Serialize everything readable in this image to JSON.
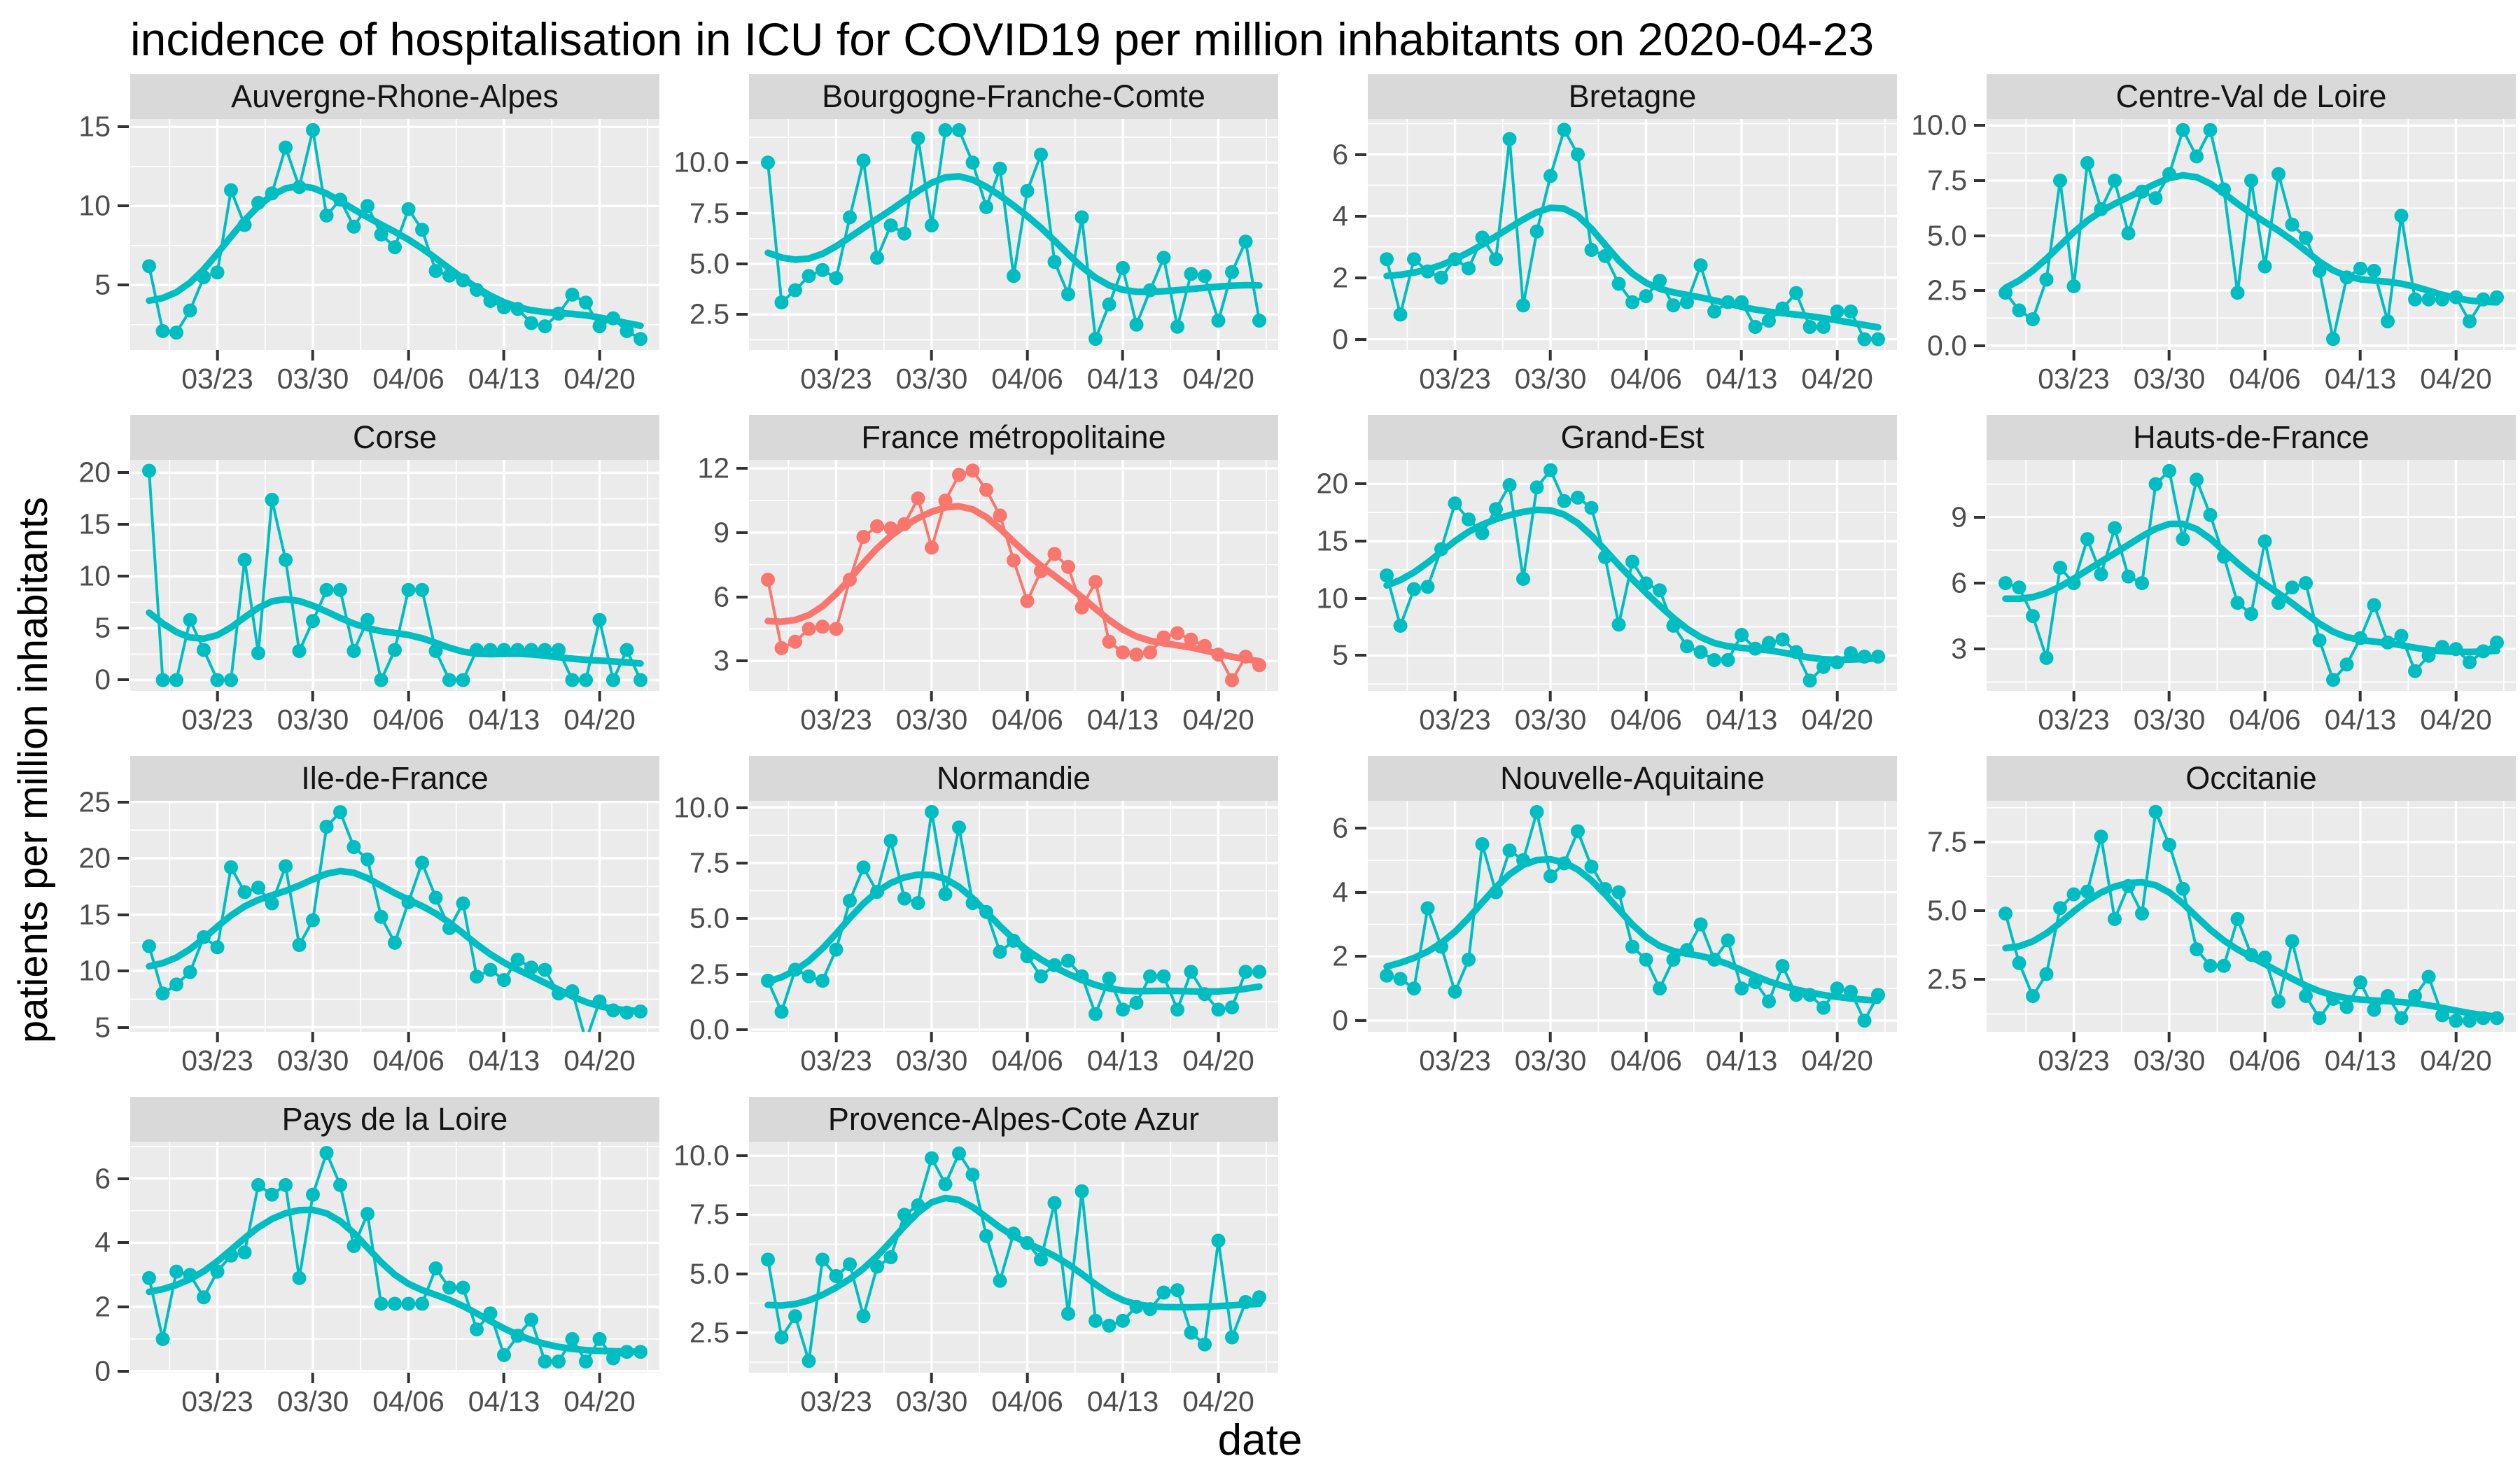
{
  "page": {
    "title": "incidence of hospitalisation in ICU for COVID19 per million inhabitants on 2020-04-23",
    "x_axis_label": "date",
    "y_axis_label": "patients per million inhabitants"
  },
  "style": {
    "series_color": "#00BDC2",
    "highlight_color": "#F8766D",
    "strip_bg": "#D9D9D9",
    "panel_bg": "#EBEBEB",
    "grid_color": "#FFFFFF",
    "tick_label_color": "#4D4D4D",
    "tick_mark_color": "#333333"
  },
  "chart_data": {
    "type": "line",
    "faceted": true,
    "legend": "none",
    "grid": "on",
    "x": [
      "03/18",
      "03/19",
      "03/20",
      "03/21",
      "03/22",
      "03/23",
      "03/24",
      "03/25",
      "03/26",
      "03/27",
      "03/28",
      "03/29",
      "03/30",
      "03/31",
      "04/01",
      "04/02",
      "04/03",
      "04/04",
      "04/05",
      "04/06",
      "04/07",
      "04/08",
      "04/09",
      "04/10",
      "04/11",
      "04/12",
      "04/13",
      "04/14",
      "04/15",
      "04/16",
      "04/17",
      "04/18",
      "04/19",
      "04/20",
      "04/21",
      "04/22",
      "04/23"
    ],
    "x_tick_labels": [
      "03/23",
      "03/30",
      "04/06",
      "04/13",
      "04/20"
    ],
    "x_tick_indices": [
      5,
      12,
      19,
      26,
      33
    ],
    "panels": [
      {
        "title": "Auvergne-Rhone-Alpes",
        "highlight": false,
        "y_ticks": [
          5,
          10,
          15
        ],
        "y_tick_labels": [
          "5",
          "10",
          "15"
        ],
        "ylim": [
          0.9,
          15.5
        ],
        "values": [
          6.2,
          2.1,
          2.0,
          3.4,
          5.5,
          5.8,
          11.0,
          8.8,
          10.2,
          10.8,
          13.7,
          11.2,
          14.8,
          9.4,
          10.4,
          8.7,
          10.0,
          8.2,
          7.4,
          9.8,
          8.5,
          5.9,
          5.6,
          5.3,
          4.7,
          4.0,
          3.6,
          3.5,
          2.6,
          2.4,
          3.2,
          4.4,
          3.9,
          2.4,
          2.9,
          2.1,
          1.6
        ]
      },
      {
        "title": "Bourgogne-Franche-Comte",
        "highlight": false,
        "y_ticks": [
          2.5,
          5.0,
          7.5,
          10.0
        ],
        "y_tick_labels": [
          "2.5",
          "5.0",
          "7.5",
          "10.0"
        ],
        "ylim": [
          0.75,
          12.15
        ],
        "values": [
          10.0,
          3.1,
          3.7,
          4.4,
          4.7,
          4.3,
          7.3,
          10.1,
          5.3,
          6.9,
          6.5,
          11.2,
          6.9,
          11.6,
          11.6,
          10.0,
          7.8,
          9.7,
          4.4,
          8.6,
          10.4,
          5.1,
          3.5,
          7.3,
          1.3,
          3.0,
          4.8,
          2.0,
          3.7,
          5.3,
          1.9,
          4.5,
          4.4,
          2.2,
          4.6,
          6.1,
          2.2
        ]
      },
      {
        "title": "Bretagne",
        "highlight": false,
        "y_ticks": [
          0,
          2,
          4,
          6
        ],
        "y_tick_labels": [
          "0",
          "2",
          "4",
          "6"
        ],
        "ylim": [
          -0.35,
          7.15
        ],
        "values": [
          2.6,
          0.8,
          2.6,
          2.2,
          2.0,
          2.6,
          2.3,
          3.3,
          2.6,
          6.5,
          1.1,
          3.5,
          5.3,
          6.8,
          6.0,
          2.9,
          2.7,
          1.8,
          1.2,
          1.4,
          1.9,
          1.1,
          1.2,
          2.4,
          0.9,
          1.2,
          1.2,
          0.4,
          0.6,
          1.0,
          1.5,
          0.4,
          0.4,
          0.9,
          0.9,
          0.0,
          0.0
        ]
      },
      {
        "title": "Centre-Val de Loire",
        "highlight": false,
        "y_ticks": [
          0.0,
          2.5,
          5.0,
          7.5,
          10.0
        ],
        "y_tick_labels": [
          "0.0",
          "2.5",
          "5.0",
          "7.5",
          "10.0"
        ],
        "ylim": [
          -0.2,
          10.3
        ],
        "values": [
          2.4,
          1.6,
          1.2,
          3.0,
          7.5,
          2.7,
          8.3,
          6.2,
          7.5,
          5.1,
          7.0,
          6.7,
          7.8,
          9.8,
          8.6,
          9.8,
          7.1,
          2.4,
          7.5,
          3.6,
          7.8,
          5.5,
          4.9,
          3.4,
          0.3,
          3.1,
          3.5,
          3.4,
          1.1,
          5.9,
          2.1,
          2.1,
          2.1,
          2.2,
          1.1,
          2.1,
          2.2
        ]
      },
      {
        "title": "Corse",
        "highlight": false,
        "y_ticks": [
          0,
          5,
          10,
          15,
          20
        ],
        "y_tick_labels": [
          "0",
          "5",
          "10",
          "15",
          "20"
        ],
        "ylim": [
          -1.05,
          21.25
        ],
        "values": [
          20.2,
          0,
          0,
          5.8,
          2.9,
          0,
          0,
          11.6,
          2.6,
          17.4,
          11.6,
          2.8,
          5.7,
          8.7,
          8.7,
          2.8,
          5.8,
          0,
          2.9,
          8.7,
          8.7,
          2.8,
          0,
          0,
          2.9,
          2.9,
          2.9,
          2.9,
          2.9,
          2.9,
          2.9,
          0,
          0,
          5.8,
          0,
          2.9,
          0
        ]
      },
      {
        "title": "France métropolitaine",
        "highlight": true,
        "y_ticks": [
          3,
          6,
          9,
          12
        ],
        "y_tick_labels": [
          "3",
          "6",
          "9",
          "12"
        ],
        "ylim": [
          1.6,
          12.4
        ],
        "values": [
          6.8,
          3.6,
          3.9,
          4.5,
          4.6,
          4.5,
          6.8,
          8.8,
          9.3,
          9.2,
          9.4,
          10.6,
          8.3,
          10.5,
          11.7,
          11.9,
          11.0,
          9.8,
          7.7,
          5.8,
          7.2,
          8.0,
          7.4,
          5.5,
          6.7,
          3.9,
          3.4,
          3.3,
          3.4,
          4.1,
          4.3,
          4.0,
          3.7,
          3.3,
          2.1,
          3.2,
          2.8
        ]
      },
      {
        "title": "Grand-Est",
        "highlight": false,
        "y_ticks": [
          5,
          10,
          15,
          20
        ],
        "y_tick_labels": [
          "5",
          "10",
          "15",
          "20"
        ],
        "ylim": [
          1.9,
          22.1
        ],
        "values": [
          12.0,
          7.6,
          10.8,
          11.0,
          14.3,
          18.3,
          16.9,
          15.7,
          17.8,
          19.9,
          11.7,
          19.7,
          21.2,
          18.5,
          18.8,
          17.9,
          13.6,
          7.7,
          13.2,
          11.3,
          10.7,
          7.6,
          5.8,
          5.3,
          4.6,
          4.6,
          6.8,
          5.6,
          6.1,
          6.4,
          5.3,
          2.8,
          4.0,
          4.4,
          5.2,
          4.9,
          4.9
        ]
      },
      {
        "title": "Hauts-de-France",
        "highlight": false,
        "y_ticks": [
          3,
          6,
          9
        ],
        "y_tick_labels": [
          "3",
          "6",
          "9"
        ],
        "ylim": [
          1.1,
          11.6
        ],
        "values": [
          6.0,
          5.8,
          4.5,
          2.6,
          6.7,
          6.0,
          8.0,
          6.4,
          8.5,
          6.3,
          6.0,
          10.5,
          11.1,
          8.0,
          10.7,
          9.1,
          7.2,
          5.1,
          4.6,
          7.9,
          5.1,
          5.8,
          6.0,
          3.4,
          1.6,
          2.3,
          3.5,
          5.0,
          3.3,
          3.6,
          2.0,
          2.7,
          3.1,
          3.0,
          2.4,
          2.9,
          3.3
        ]
      },
      {
        "title": "Ile-de-France",
        "highlight": false,
        "y_ticks": [
          5,
          10,
          15,
          20,
          25
        ],
        "y_tick_labels": [
          "5",
          "10",
          "15",
          "20",
          "25"
        ],
        "ylim": [
          4.6,
          25.1
        ],
        "values": [
          12.2,
          8.0,
          8.8,
          9.9,
          13.0,
          12.1,
          19.2,
          17.0,
          17.4,
          16.0,
          19.3,
          12.3,
          14.5,
          22.8,
          24.1,
          21.0,
          19.9,
          14.8,
          12.5,
          16.1,
          19.6,
          16.5,
          13.8,
          16.0,
          9.5,
          10.1,
          9.2,
          11.0,
          10.3,
          10.1,
          8.0,
          8.2,
          3.8,
          7.3,
          6.5,
          6.3,
          6.4
        ]
      },
      {
        "title": "Normandie",
        "highlight": false,
        "y_ticks": [
          0.0,
          2.5,
          5.0,
          7.5,
          10.0
        ],
        "y_tick_labels": [
          "0.0",
          "2.5",
          "5.0",
          "7.5",
          "10.0"
        ],
        "ylim": [
          -0.1,
          10.3
        ],
        "values": [
          2.2,
          0.8,
          2.7,
          2.4,
          2.2,
          3.6,
          5.8,
          7.3,
          6.2,
          8.5,
          5.9,
          5.7,
          9.8,
          6.1,
          9.1,
          5.7,
          5.3,
          3.5,
          4.0,
          3.3,
          2.4,
          2.9,
          3.1,
          2.4,
          0.7,
          2.3,
          0.9,
          1.2,
          2.4,
          2.4,
          0.9,
          2.6,
          1.6,
          0.9,
          1.0,
          2.6,
          2.6
        ]
      },
      {
        "title": "Nouvelle-Aquitaine",
        "highlight": false,
        "y_ticks": [
          0,
          2,
          4,
          6
        ],
        "y_tick_labels": [
          "0",
          "2",
          "4",
          "6"
        ],
        "ylim": [
          -0.35,
          6.85
        ],
        "values": [
          1.4,
          1.3,
          1.0,
          3.5,
          2.3,
          0.9,
          1.9,
          5.5,
          4.0,
          5.3,
          5.0,
          6.5,
          4.5,
          4.9,
          5.9,
          4.8,
          4.1,
          4.0,
          2.3,
          1.9,
          1.0,
          1.9,
          2.2,
          3.0,
          1.9,
          2.5,
          1.0,
          1.2,
          0.6,
          1.7,
          0.8,
          0.8,
          0.4,
          1.0,
          0.9,
          0.0,
          0.8
        ]
      },
      {
        "title": "Occitanie",
        "highlight": false,
        "y_ticks": [
          2.5,
          5.0,
          7.5
        ],
        "y_tick_labels": [
          "2.5",
          "5.0",
          "7.5"
        ],
        "ylim": [
          0.6,
          9.0
        ],
        "values": [
          4.9,
          3.1,
          1.9,
          2.7,
          5.1,
          5.6,
          5.7,
          7.7,
          4.7,
          5.9,
          4.9,
          8.6,
          7.4,
          5.8,
          3.6,
          3.0,
          3.0,
          4.7,
          3.4,
          3.3,
          1.7,
          3.9,
          1.9,
          1.1,
          1.8,
          1.5,
          2.4,
          1.4,
          1.9,
          1.1,
          1.9,
          2.6,
          1.2,
          1.0,
          1.0,
          1.1,
          1.1
        ]
      },
      {
        "title": "Pays de la Loire",
        "highlight": false,
        "y_ticks": [
          0,
          2,
          4,
          6
        ],
        "y_tick_labels": [
          "0",
          "2",
          "4",
          "6"
        ],
        "ylim": [
          -0.05,
          7.15
        ],
        "values": [
          2.9,
          1.0,
          3.1,
          3.0,
          2.3,
          3.1,
          3.6,
          3.7,
          5.8,
          5.5,
          5.8,
          2.9,
          5.5,
          6.8,
          5.8,
          3.9,
          4.9,
          2.1,
          2.1,
          2.1,
          2.1,
          3.2,
          2.6,
          2.6,
          1.3,
          1.8,
          0.5,
          1.1,
          1.6,
          0.3,
          0.3,
          1.0,
          0.3,
          1.0,
          0.4,
          0.6,
          0.6
        ]
      },
      {
        "title": "Provence-Alpes-Cote Azur",
        "highlight": false,
        "y_ticks": [
          2.5,
          5.0,
          7.5,
          10.0
        ],
        "y_tick_labels": [
          "2.5",
          "5.0",
          "7.5",
          "10.0"
        ],
        "ylim": [
          0.8,
          10.6
        ],
        "values": [
          5.6,
          2.3,
          3.2,
          1.3,
          5.6,
          4.9,
          5.4,
          3.2,
          5.3,
          5.7,
          7.5,
          7.9,
          9.9,
          8.8,
          10.1,
          9.2,
          6.6,
          4.7,
          6.7,
          6.3,
          5.6,
          8.0,
          3.3,
          8.5,
          3.0,
          2.8,
          3.0,
          3.6,
          3.5,
          4.2,
          4.3,
          2.5,
          2.0,
          6.4,
          2.3,
          3.8,
          4.0
        ]
      }
    ]
  }
}
